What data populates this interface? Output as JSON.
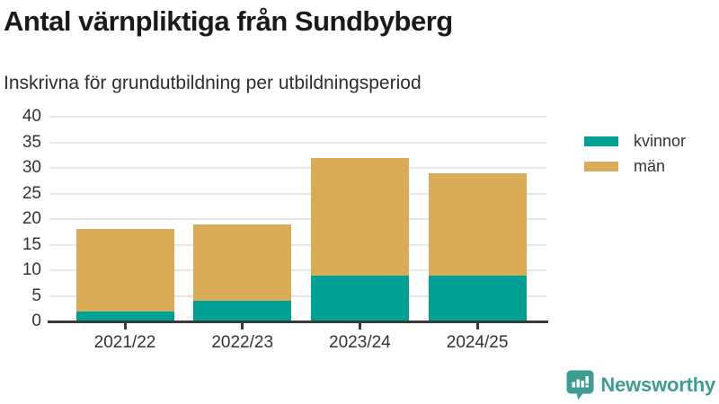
{
  "title": "Antal värnpliktiga från Sundbyberg",
  "subtitle": "Inskrivna för grundutbildning per utbildningsperiod",
  "chart_data": {
    "type": "bar",
    "stacked": true,
    "title": "Antal värnpliktiga från Sundbyberg",
    "subtitle": "Inskrivna för grundutbildning per utbildningsperiod",
    "categories": [
      "2021/22",
      "2022/23",
      "2023/24",
      "2024/25"
    ],
    "series": [
      {
        "name": "kvinnor",
        "color": "#00a094",
        "values": [
          2,
          4,
          9,
          9
        ]
      },
      {
        "name": "män",
        "color": "#d9ab56",
        "values": [
          16,
          15,
          23,
          20
        ]
      }
    ],
    "totals": [
      18,
      19,
      32,
      29
    ],
    "xlabel": "",
    "ylabel": "",
    "ylim": [
      0,
      40
    ],
    "yticks": [
      0,
      5,
      10,
      15,
      20,
      25,
      30,
      35,
      40
    ],
    "grid": true,
    "legend_position": "right"
  },
  "colors": {
    "kvinnor": "#00a094",
    "man": "#d9ab56",
    "axis": "#3a3a3a",
    "gridline": "#e7e7e7",
    "text": "#333333",
    "title_text": "#1a1a1a",
    "brand_teal": "#3e9c93"
  },
  "branding": {
    "logo_text": "Newsworthy",
    "logo_icon": "bar-chart-speech-bubble"
  }
}
